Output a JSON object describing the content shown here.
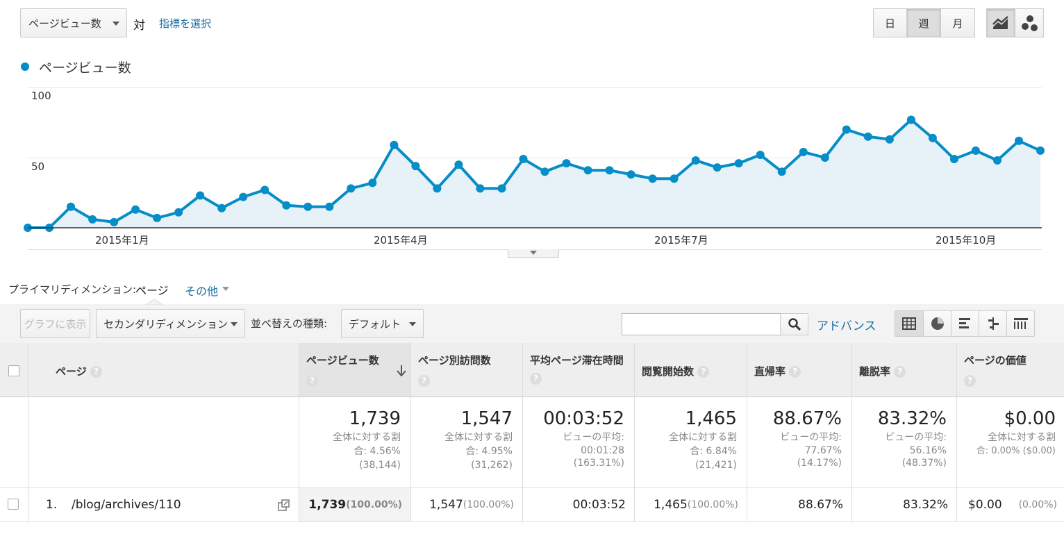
{
  "header": {
    "metric_select": "ページビュー数",
    "vs_label": "対",
    "choose_metric_link": "指標を選択",
    "period_buttons": [
      "日",
      "週",
      "月"
    ],
    "active_period": "週"
  },
  "legend": {
    "label": "ページビュー数",
    "color": "#058dc7"
  },
  "chart_data": {
    "type": "area",
    "series": [
      {
        "name": "ページビュー数",
        "values": [
          0,
          0,
          15,
          6,
          4,
          13,
          7,
          11,
          23,
          14,
          22,
          27,
          16,
          15,
          15,
          28,
          32,
          59,
          44,
          28,
          45,
          28,
          28,
          49,
          40,
          46,
          41,
          41,
          38,
          35,
          35,
          48,
          43,
          46,
          52,
          40,
          54,
          50,
          70,
          65,
          63,
          77,
          64,
          49,
          55,
          48,
          62,
          55
        ]
      }
    ],
    "x_tick_labels": [
      "2015年1月",
      "2015年4月",
      "2015年7月",
      "2015年10月"
    ],
    "y_tick_labels": [
      "100",
      "50"
    ],
    "ylim": [
      0,
      100
    ],
    "grid": true,
    "color": "#058dc7",
    "fill": "#e6f1f8"
  },
  "dimension": {
    "label": "プライマリディメンション:",
    "current": "ページ",
    "other": "その他"
  },
  "toolbar": {
    "plot_button": "グラフに表示",
    "secondary_dim": "セカンダリディメンション",
    "sort_label": "並べ替えの種類:",
    "sort_value": "デフォルト",
    "search_placeholder": "",
    "advanced": "アドバンス"
  },
  "table": {
    "headers": [
      "ページ",
      "ページビュー数",
      "ページ別訪問数",
      "平均ページ滞在時間",
      "閲覧開始数",
      "直帰率",
      "離脱率",
      "ページの価値"
    ],
    "totals": [
      {
        "value": "1,739",
        "sub1": "全体に対する割",
        "sub2": "合: 4.56%",
        "sub3": "(38,144)"
      },
      {
        "value": "1,547",
        "sub1": "全体に対する割",
        "sub2": "合: 4.95%",
        "sub3": "(31,262)"
      },
      {
        "value": "00:03:52",
        "sub1": "ビューの平均:",
        "sub2": "00:01:28",
        "sub3": "(163.31%)"
      },
      {
        "value": "1,465",
        "sub1": "全体に対する割",
        "sub2": "合: 6.84%",
        "sub3": "(21,421)"
      },
      {
        "value": "88.67%",
        "sub1": "ビューの平均:",
        "sub2": "77.67%",
        "sub3": "(14.17%)"
      },
      {
        "value": "83.32%",
        "sub1": "ビューの平均:",
        "sub2": "56.16%",
        "sub3": "(48.37%)"
      },
      {
        "value": "$0.00",
        "sub1": "全体に対する割",
        "sub2": "合: 0.00% ($0.00)",
        "sub3": ""
      }
    ],
    "rows": [
      {
        "index": "1.",
        "page": "/blog/archives/110",
        "pv": "1,739",
        "pv_pct": "(100.00%)",
        "visits": "1,547",
        "visits_pct": "(100.00%)",
        "time": "00:03:52",
        "entrances": "1,465",
        "entrances_pct": "(100.00%)",
        "bounce": "88.67%",
        "exit": "83.32%",
        "value": "$0.00",
        "value_pct": "(0.00%)"
      }
    ]
  }
}
